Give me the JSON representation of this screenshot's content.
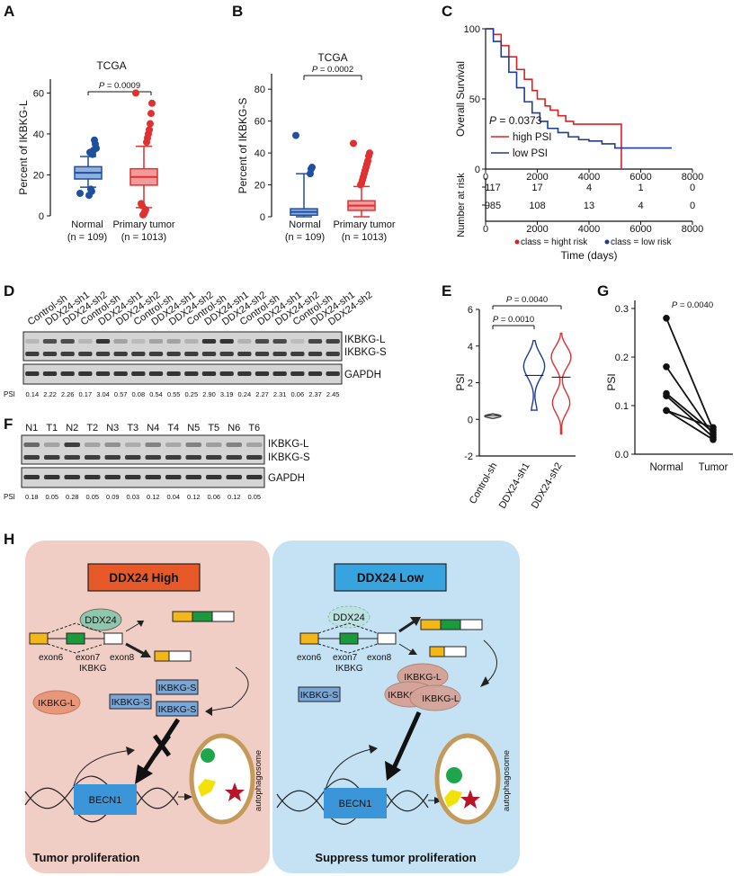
{
  "panels": {
    "A": {
      "label": "A",
      "title": "TCGA",
      "ylabel": "Percent of IKBKG-L",
      "yticks": [
        "0",
        "20",
        "40",
        "60"
      ],
      "groups": [
        {
          "name": "Normal",
          "n": "(n = 109)"
        },
        {
          "name": "Primary tumor",
          "n": "(n = 1013)"
        }
      ],
      "pvalue_p": "P",
      "pvalue_rest": " = 0.0009"
    },
    "B": {
      "label": "B",
      "title": "TCGA",
      "ylabel": "Percent of IKBKG-S",
      "yticks": [
        "0",
        "20",
        "40",
        "60",
        "80"
      ],
      "groups": [
        {
          "name": "Normal",
          "n": "(n = 109)"
        },
        {
          "name": "Primary tumor",
          "n": "(n = 1013)"
        }
      ],
      "pvalue_p": "P",
      "pvalue_rest": " = 0.0002"
    },
    "C": {
      "label": "C",
      "ylabel": "Overall Survival",
      "yticks": [
        "0",
        "50",
        "100"
      ],
      "xticks": [
        "0",
        "2000",
        "4000",
        "6000",
        "8000"
      ],
      "pvalue_p": "P",
      "pvalue_rest": " = 0.0373",
      "legend": [
        {
          "name": "high PSI",
          "color": "#e02020"
        },
        {
          "name": "low PSI",
          "color": "#1e3c96"
        }
      ],
      "risk_label": "Number at risk",
      "risk_high": [
        "117",
        "17",
        "4",
        "1",
        "0"
      ],
      "risk_low": [
        "985",
        "108",
        "13",
        "4",
        "0"
      ],
      "risk_xticks": [
        "0",
        "2000",
        "4000",
        "6000",
        "8000"
      ],
      "risk_legend": [
        {
          "name": "class = hight risk",
          "color": "#e02020"
        },
        {
          "name": "class = low risk",
          "color": "#1e3c96"
        }
      ],
      "xlabel": "Time (days)"
    },
    "D": {
      "label": "D",
      "lanes": [
        "Control-sh",
        "DDX24-sh1",
        "DDX24-sh2",
        "Control-sh",
        "DDX24-sh1",
        "DDX24-sh2",
        "Control-sh",
        "DDX24-sh1",
        "DDX24-sh2",
        "Control-sh",
        "DDX24-sh1",
        "DDX24-sh2",
        "Control-sh",
        "DDX24-sh1",
        "DDX24-sh2",
        "Control-sh",
        "DDX24-sh1",
        "DDX24-sh2"
      ],
      "bands": [
        "IKBKG-L",
        "IKBKG-S",
        "GAPDH"
      ],
      "psi_label": "PSI",
      "psi": [
        "0.14",
        "2.22",
        "2.26",
        "0.17",
        "3.04",
        "0.57",
        "0.08",
        "0.54",
        "0.55",
        "0.25",
        "2.90",
        "3.19",
        "0.24",
        "2.27",
        "2.31",
        "0.06",
        "2.37",
        "2.45"
      ]
    },
    "E": {
      "label": "E",
      "ylabel": "PSI",
      "yticks": [
        "-2",
        "0",
        "2",
        "4",
        "6"
      ],
      "groups": [
        "Control-sh",
        "DDX24-sh1",
        "DDX24-sh2"
      ],
      "p1_p": "P",
      "p1_rest": " = 0.0010",
      "p2_p": "P",
      "p2_rest": " = 0.0040"
    },
    "F": {
      "label": "F",
      "lanes": [
        "N1",
        "T1",
        "N2",
        "T2",
        "N3",
        "T3",
        "N4",
        "T4",
        "N5",
        "T5",
        "N6",
        "T6"
      ],
      "bands": [
        "IKBKG-L",
        "IKBKG-S",
        "GAPDH"
      ],
      "psi_label": "PSI",
      "psi": [
        "0.18",
        "0.05",
        "0.28",
        "0.05",
        "0.09",
        "0.03",
        "0.12",
        "0.04",
        "0.12",
        "0.06",
        "0.12",
        "0.05"
      ]
    },
    "G": {
      "label": "G",
      "ylabel": "PSI",
      "yticks": [
        "0.0",
        "0.1",
        "0.2",
        "0.3"
      ],
      "groups": [
        "Normal",
        "Tumor"
      ],
      "pvalue_p": "P",
      "pvalue_rest": " = 0.0040"
    },
    "H": {
      "label": "H",
      "left": {
        "title": "DDX24 High",
        "bottom": "Tumor proliferation",
        "ddx": "DDX24",
        "exon6": "exon6",
        "exon7": "exon7",
        "exon8": "exon8",
        "gene": "IKBKG",
        "s1": "IKBKG-S",
        "s2": "IKBKG-S",
        "s3": "IKBKG-S",
        "l1": "IKBKG-L",
        "becn": "BECN1",
        "auto": "autophagosome"
      },
      "right": {
        "title": "DDX24 Low",
        "bottom": "Suppress tumor proliferation",
        "ddx": "DDX24",
        "exon6": "exon6",
        "exon7": "exon7",
        "exon8": "exon8",
        "gene": "IKBKG",
        "s1": "IKBKG-S",
        "l1": "IKBKG-L",
        "l2": "IKBKG-L",
        "l3": "IKBKG-L",
        "becn": "BECN1",
        "auto": "autophagosome"
      }
    }
  },
  "chart_data": [
    {
      "type": "box",
      "panel": "A",
      "title": "TCGA",
      "ylabel": "Percent of IKBKG-L",
      "ylim": [
        0,
        65
      ],
      "categories": [
        "Normal\n(n = 109)",
        "Primary tumor\n(n = 1013)"
      ],
      "boxes": [
        {
          "whisker_low": 14,
          "q1": 18,
          "median": 21,
          "q3": 24,
          "whisker_high": 29
        },
        {
          "whisker_low": 4,
          "q1": 15,
          "median": 19,
          "q3": 23,
          "whisker_high": 34
        }
      ],
      "outliers": [
        [
          11,
          33,
          35,
          37,
          32,
          30,
          12,
          13,
          31,
          10
        ],
        [
          60,
          55,
          50,
          45,
          42,
          40,
          38,
          36,
          3,
          2,
          1,
          0.5,
          5,
          6
        ]
      ],
      "annotation": "P = 0.0009",
      "colors": [
        "#1e4fa0",
        "#e03030"
      ]
    },
    {
      "type": "box",
      "panel": "B",
      "title": "TCGA",
      "ylabel": "Percent of IKBKG-S",
      "ylim": [
        0,
        88
      ],
      "categories": [
        "Normal\n(n = 109)",
        "Primary tumor\n(n = 1013)"
      ],
      "boxes": [
        {
          "whisker_low": 0,
          "q1": 1,
          "median": 3,
          "q3": 5,
          "whisker_high": 27
        },
        {
          "whisker_low": 0,
          "q1": 4,
          "median": 7,
          "q3": 10,
          "whisker_high": 19
        }
      ],
      "outliers": [
        [
          51,
          31,
          30,
          27
        ],
        [
          46,
          40,
          38,
          35,
          33,
          31,
          29,
          27,
          25,
          23,
          21,
          20
        ]
      ],
      "annotation": "P = 0.0002",
      "colors": [
        "#1e4fa0",
        "#e03030"
      ]
    },
    {
      "type": "line",
      "panel": "C",
      "ylabel": "Overall Survival",
      "xlabel": "Time (days)",
      "xlim": [
        0,
        8000
      ],
      "ylim": [
        0,
        100
      ],
      "series": [
        {
          "name": "high PSI",
          "color": "#e02020",
          "x": [
            0,
            300,
            600,
            900,
            1200,
            1500,
            1800,
            2000,
            2300,
            2500,
            2800,
            3100,
            3400,
            4000,
            4800,
            5000,
            5200,
            5250
          ],
          "y": [
            100,
            96,
            88,
            80,
            71,
            64,
            56,
            50,
            45,
            42,
            38,
            34,
            32,
            32,
            32,
            32,
            32,
            0
          ]
        },
        {
          "name": "low PSI",
          "color": "#1e3c96",
          "x": [
            0,
            300,
            600,
            900,
            1200,
            1500,
            1800,
            2100,
            2400,
            2800,
            3200,
            3600,
            4000,
            4500,
            5000,
            5500,
            6500,
            7200
          ],
          "y": [
            100,
            91,
            80,
            69,
            58,
            48,
            40,
            34,
            29,
            26,
            23,
            21,
            20,
            18,
            15,
            15,
            15,
            15
          ]
        }
      ],
      "annotation": "P = 0.0373",
      "number_at_risk": {
        "x": [
          0,
          2000,
          4000,
          6000,
          8000
        ],
        "high_risk": [
          117,
          17,
          4,
          1,
          0
        ],
        "low_risk": [
          985,
          108,
          13,
          4,
          0
        ]
      }
    },
    {
      "type": "violin",
      "panel": "E",
      "ylabel": "PSI",
      "ylim": [
        -2,
        6
      ],
      "categories": [
        "Control-sh",
        "DDX24-sh1",
        "DDX24-sh2"
      ],
      "medians": [
        0.2,
        2.4,
        2.3
      ],
      "ranges": [
        [
          0.05,
          0.3
        ],
        [
          0.5,
          4.3
        ],
        [
          -0.8,
          4.7
        ]
      ],
      "colors": [
        "#333333",
        "#1e3c96",
        "#e03030"
      ],
      "annotations": [
        "P = 0.0010",
        "P = 0.0040"
      ]
    },
    {
      "type": "paired",
      "panel": "G",
      "ylabel": "PSI",
      "ylim": [
        0,
        0.3
      ],
      "categories": [
        "Normal",
        "Tumor"
      ],
      "pairs": [
        [
          0.28,
          0.05
        ],
        [
          0.18,
          0.04
        ],
        [
          0.12,
          0.035
        ],
        [
          0.125,
          0.045
        ],
        [
          0.09,
          0.03
        ],
        [
          0.09,
          0.055
        ]
      ],
      "annotation": "P = 0.0040"
    }
  ]
}
